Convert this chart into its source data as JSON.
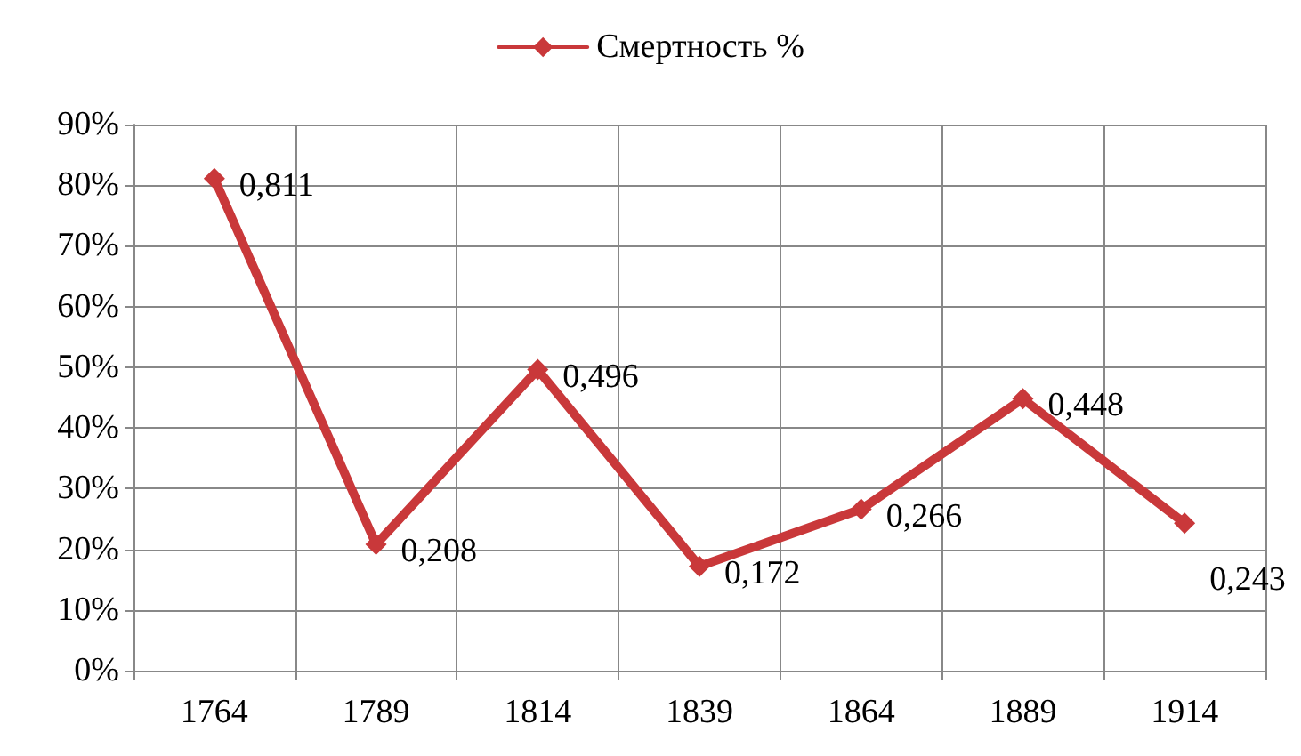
{
  "chart_data": {
    "type": "line",
    "categories": [
      "1764",
      "1789",
      "1814",
      "1839",
      "1864",
      "1889",
      "1914"
    ],
    "series": [
      {
        "name": "Смертность %",
        "color": "#c9383a",
        "values": [
          0.811,
          0.208,
          0.496,
          0.172,
          0.266,
          0.448,
          0.243
        ],
        "value_labels": [
          "0,811",
          "0,208",
          "0,496",
          "0,172",
          "0,266",
          "0,448",
          "0,243"
        ]
      }
    ],
    "ylim": [
      0,
      0.9
    ],
    "yticks": [
      {
        "value": 0,
        "label": "0%"
      },
      {
        "value": 0.1,
        "label": "10%"
      },
      {
        "value": 0.2,
        "label": "20%"
      },
      {
        "value": 0.3,
        "label": "30%"
      },
      {
        "value": 0.4,
        "label": "40%"
      },
      {
        "value": 0.5,
        "label": "50%"
      },
      {
        "value": 0.6,
        "label": "60%"
      },
      {
        "value": 0.7,
        "label": "70%"
      },
      {
        "value": 0.8,
        "label": "80%"
      },
      {
        "value": 0.9,
        "label": "90%"
      }
    ],
    "grid": true,
    "legend": "top",
    "marker": "diamond",
    "line_style": "solid"
  }
}
